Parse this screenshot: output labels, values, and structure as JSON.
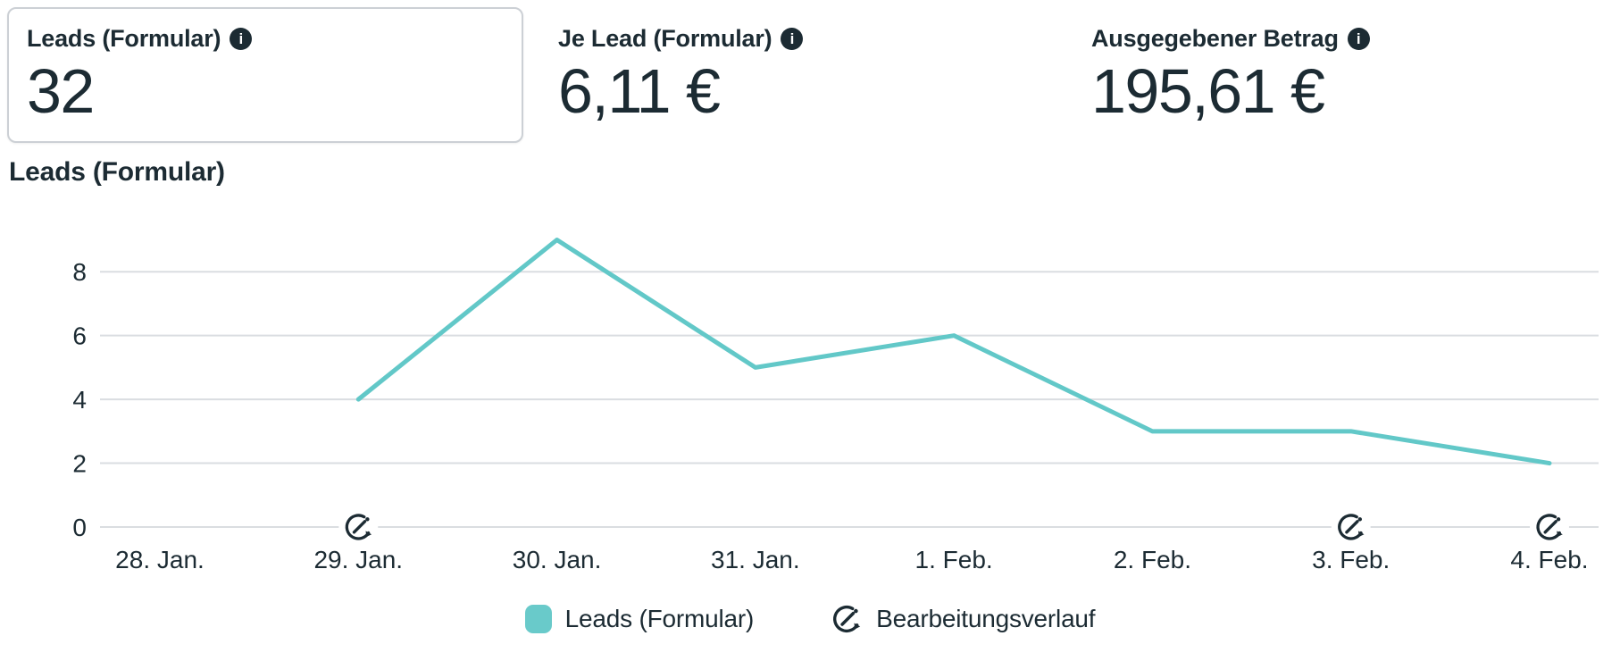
{
  "colors": {
    "text_dark": "#1c2b33",
    "grid": "#dadde1",
    "line_teal": "#62c8c8",
    "swatch_teal": "#69caca",
    "card_border": "#ccd0d5"
  },
  "metric_cards": [
    {
      "label": "Leads (Formular)",
      "value": "32",
      "info_icon": "info-icon",
      "selected": true
    },
    {
      "label": "Je Lead (Formular)",
      "value": "6,11 €",
      "info_icon": "info-icon",
      "selected": false
    },
    {
      "label": "Ausgegebener Betrag",
      "value": "195,61 €",
      "info_icon": "info-icon",
      "selected": false
    }
  ],
  "chart": {
    "title": "Leads (Formular)",
    "legend": [
      {
        "icon": "series-swatch",
        "label": "Leads (Formular)"
      },
      {
        "icon": "edit-history-icon",
        "label": "Bearbeitungsverlauf"
      }
    ]
  },
  "chart_data": {
    "type": "line",
    "title": "Leads (Formular)",
    "categories": [
      "28. Jan.",
      "29. Jan.",
      "30. Jan.",
      "31. Jan.",
      "1. Feb.",
      "2. Feb.",
      "3. Feb.",
      "4. Feb."
    ],
    "series": [
      {
        "name": "Leads (Formular)",
        "values": [
          null,
          4,
          9,
          5,
          6,
          3,
          3,
          2
        ]
      }
    ],
    "y_ticks": [
      0,
      2,
      4,
      6,
      8
    ],
    "ylim": [
      0,
      10
    ],
    "grid": true,
    "legend_position": "bottom",
    "edit_history_markers": [
      "29. Jan.",
      "3. Feb.",
      "4. Feb."
    ],
    "line_color": "#62c8c8"
  }
}
